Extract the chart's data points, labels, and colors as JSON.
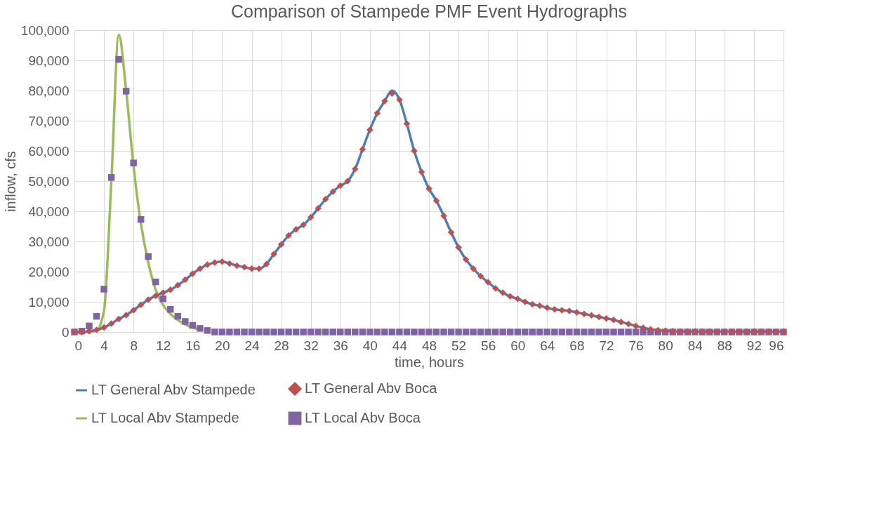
{
  "chart_data": {
    "type": "line",
    "title": "Comparison of Stampede PMF Event Hydrographs",
    "xlabel": "time, hours",
    "ylabel": "inflow, cfs",
    "x": [
      0,
      1,
      2,
      3,
      4,
      5,
      6,
      7,
      8,
      9,
      10,
      11,
      12,
      13,
      14,
      15,
      16,
      17,
      18,
      19,
      20,
      21,
      22,
      23,
      24,
      25,
      26,
      27,
      28,
      29,
      30,
      31,
      32,
      33,
      34,
      35,
      36,
      37,
      38,
      39,
      40,
      41,
      42,
      43,
      44,
      45,
      46,
      47,
      48,
      49,
      50,
      51,
      52,
      53,
      54,
      55,
      56,
      57,
      58,
      59,
      60,
      61,
      62,
      63,
      64,
      65,
      66,
      67,
      68,
      69,
      70,
      71,
      72,
      73,
      74,
      75,
      76,
      77,
      78,
      79,
      80,
      81,
      82,
      83,
      84,
      85,
      86,
      87,
      88,
      89,
      90,
      91,
      92,
      93,
      94,
      95,
      96
    ],
    "series": [
      {
        "name": "LT General Abv Stampede",
        "color": "#4a7ebb",
        "values": [
          0,
          0,
          300,
          700,
          1500,
          2800,
          4300,
          5600,
          7200,
          9000,
          10700,
          12000,
          13000,
          14000,
          15500,
          17300,
          19300,
          21000,
          22300,
          23000,
          23300,
          22700,
          22000,
          21500,
          21000,
          21000,
          22500,
          25800,
          29000,
          32000,
          34000,
          35500,
          38000,
          41000,
          44000,
          46500,
          48500,
          50000,
          54000,
          60500,
          67000,
          72500,
          76500,
          80000,
          77000,
          69000,
          60000,
          53000,
          47500,
          43500,
          38500,
          33000,
          28000,
          24000,
          21000,
          18500,
          16500,
          14500,
          13000,
          11800,
          11000,
          10000,
          9200,
          8700,
          8000,
          7500,
          7200,
          7000,
          6500,
          6000,
          5500,
          5000,
          4500,
          4000,
          3300,
          2700,
          2000,
          1400,
          900,
          600,
          400,
          300,
          200,
          200,
          100,
          100,
          100,
          100,
          100,
          100,
          100,
          100,
          100,
          100,
          100,
          100,
          100
        ]
      },
      {
        "name": "LT General Abv Boca",
        "type": "scatter",
        "marker": "diamond",
        "color": "#c0504d",
        "values": [
          0,
          0,
          300,
          700,
          1500,
          2800,
          4300,
          5600,
          7200,
          9000,
          10700,
          12000,
          13000,
          14000,
          15500,
          17300,
          19300,
          21000,
          22300,
          23000,
          23300,
          22700,
          22000,
          21500,
          21000,
          21000,
          22500,
          25800,
          29000,
          32000,
          34000,
          35500,
          38000,
          41000,
          44000,
          46500,
          48500,
          50000,
          54000,
          60500,
          67000,
          72500,
          76500,
          79000,
          77000,
          69000,
          60000,
          53000,
          47500,
          43500,
          38500,
          33000,
          28000,
          24000,
          21000,
          18500,
          16500,
          14500,
          13000,
          11800,
          11000,
          10000,
          9200,
          8700,
          8000,
          7500,
          7200,
          7000,
          6500,
          6000,
          5500,
          5000,
          4500,
          4000,
          3300,
          2700,
          2000,
          1400,
          900,
          600,
          400,
          300,
          200,
          200,
          100,
          100,
          100,
          100,
          100,
          100,
          100,
          100,
          100,
          100,
          100,
          100,
          100
        ]
      },
      {
        "name": "LT Local Abv Stampede",
        "color": "#9bbb59",
        "values": [
          0,
          0,
          0,
          500,
          7000,
          50000,
          98500,
          80000,
          55000,
          36000,
          23000,
          14000,
          9000,
          6000,
          4000,
          2500,
          1500,
          800,
          null,
          null,
          null,
          null,
          null,
          null,
          null,
          null,
          null,
          null,
          null,
          null,
          null,
          null,
          null,
          null,
          null,
          null,
          null,
          null,
          null,
          null,
          null,
          null,
          null,
          null,
          null,
          null,
          null,
          null,
          null,
          null,
          null,
          null,
          null,
          null,
          null,
          null,
          null,
          null,
          null,
          null,
          null,
          null,
          null,
          null,
          null,
          null,
          null,
          null,
          null,
          null,
          null,
          null,
          null,
          null,
          null,
          null,
          null,
          null,
          null,
          null,
          null,
          null,
          null,
          null,
          null,
          null,
          null,
          null,
          null,
          null,
          null,
          null,
          null,
          null,
          null,
          null,
          null
        ]
      },
      {
        "name": "LT Local Abv Boca",
        "type": "scatter",
        "marker": "square",
        "color": "#8064a2",
        "values": [
          0,
          300,
          2000,
          5200,
          14200,
          51200,
          90300,
          79800,
          56000,
          37300,
          25000,
          16600,
          11000,
          7500,
          5200,
          3500,
          2200,
          1200,
          500,
          0,
          0,
          0,
          0,
          0,
          0,
          0,
          0,
          0,
          0,
          0,
          0,
          0,
          0,
          0,
          0,
          0,
          0,
          0,
          0,
          0,
          0,
          0,
          0,
          0,
          0,
          0,
          0,
          0,
          0,
          0,
          0,
          0,
          0,
          0,
          0,
          0,
          0,
          0,
          0,
          0,
          0,
          0,
          0,
          0,
          0,
          0,
          0,
          0,
          0,
          0,
          0,
          0,
          0,
          0,
          0,
          0,
          0,
          0,
          0,
          0,
          0,
          0,
          0,
          0,
          0,
          0,
          0,
          0,
          0,
          0,
          0,
          0,
          0,
          0,
          0,
          0,
          0
        ]
      }
    ],
    "xlim": [
      0,
      96
    ],
    "xticks": [
      0,
      4,
      8,
      12,
      16,
      20,
      24,
      28,
      32,
      36,
      40,
      44,
      48,
      52,
      56,
      60,
      64,
      68,
      72,
      76,
      80,
      84,
      88,
      92,
      96
    ],
    "ylim": [
      0,
      100000
    ],
    "yticks": [
      0,
      {
        "value": 10000,
        "label": "10,000"
      },
      {
        "value": 20000,
        "label": "20,000"
      },
      {
        "value": 30000,
        "label": "30,000"
      },
      {
        "value": 40000,
        "label": "40,000"
      },
      {
        "value": 50000,
        "label": "50,000"
      },
      {
        "value": 60000,
        "label": "60,000"
      },
      {
        "value": 70000,
        "label": "70,000"
      },
      {
        "value": 80000,
        "label": "80,000"
      },
      {
        "value": 90000,
        "label": "90,000"
      },
      {
        "value": 100000,
        "label": "100,000"
      }
    ],
    "grid": true,
    "legend": "bottom"
  }
}
